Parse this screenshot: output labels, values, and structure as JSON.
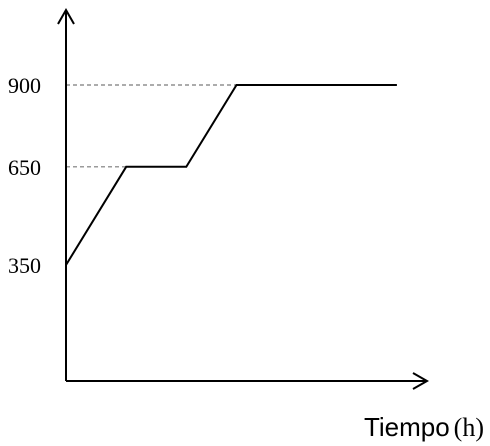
{
  "chart_data": {
    "type": "line",
    "xlabel_word": "Tiempo",
    "xlabel_unit": "(h)",
    "ylabel": "",
    "y_ticks": [
      350,
      650,
      900
    ],
    "reference_lines": [
      650,
      900
    ],
    "series": [
      {
        "x": [
          0,
          3,
          6,
          8.5,
          16.5
        ],
        "y": [
          350,
          650,
          650,
          900,
          900
        ]
      }
    ],
    "xlim": [
      0,
      18
    ],
    "ylim": [
      0,
      1100
    ],
    "grid": false,
    "axis_arrows": true
  }
}
